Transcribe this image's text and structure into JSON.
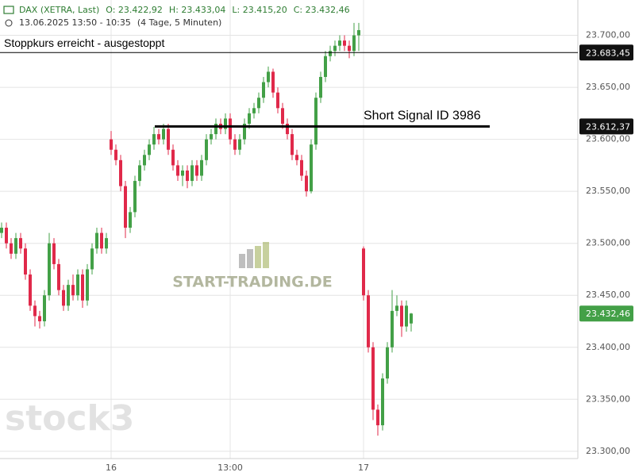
{
  "header": {
    "symbol": "DAX (XETRA, Last)",
    "ohlc": [
      "O: 23.422,92",
      "H: 23.433,04",
      "L: 23.415,20",
      "C: 23.432,46"
    ],
    "period": "13.06.2025 13:50 - 10:35",
    "interval": "(4 Tage, 5 Minuten)"
  },
  "watermarks": {
    "brand": "START-TRADING.DE",
    "logo": "stock3"
  },
  "chart_data": {
    "type": "candlestick",
    "categories": [
      null,
      null,
      null,
      null,
      null,
      null,
      null,
      null,
      null,
      null,
      null,
      null,
      null,
      null,
      null,
      null,
      null,
      null,
      null,
      null,
      null,
      null,
      null,
      "16",
      null,
      null,
      null,
      null,
      null,
      null,
      null,
      null,
      null,
      null,
      null,
      null,
      null,
      null,
      null,
      null,
      null,
      null,
      null,
      null,
      null,
      null,
      null,
      null,
      "13:00",
      null,
      null,
      null,
      null,
      null,
      null,
      null,
      null,
      null,
      null,
      null,
      null,
      null,
      null,
      null,
      null,
      null,
      null,
      null,
      null,
      null,
      null,
      null,
      null,
      null,
      null,
      null,
      "17",
      null,
      null,
      null,
      null,
      null,
      null,
      null,
      null,
      null,
      null
    ],
    "open": [
      23510,
      23515,
      23500,
      23490,
      23505,
      23495,
      23470,
      23440,
      23430,
      23425,
      23450,
      23500,
      23480,
      23455,
      23440,
      23460,
      23450,
      23470,
      23445,
      23475,
      23495,
      23510,
      23495,
      23600,
      23590,
      23580,
      23555,
      23515,
      23530,
      23560,
      23575,
      23585,
      23595,
      23605,
      23600,
      23610,
      23590,
      23575,
      23565,
      23570,
      23560,
      23575,
      23565,
      23580,
      23600,
      23605,
      23615,
      23610,
      23620,
      23600,
      23590,
      23600,
      23615,
      23625,
      23630,
      23640,
      23655,
      23665,
      23645,
      23630,
      23615,
      23605,
      23585,
      23580,
      23565,
      23550,
      23595,
      23640,
      23660,
      23680,
      23685,
      23690,
      23695,
      23690,
      23685,
      23700,
      23495,
      23450,
      23400,
      23340,
      23325,
      23370,
      23400,
      23435,
      23440,
      23420,
      23422.92
    ],
    "high": [
      23520,
      23520,
      23505,
      23510,
      23510,
      23500,
      23475,
      23445,
      23435,
      23455,
      23510,
      23505,
      23485,
      23460,
      23465,
      23470,
      23475,
      23475,
      23480,
      23500,
      23515,
      23515,
      23510,
      23608,
      23595,
      23585,
      23560,
      23535,
      23565,
      23580,
      23590,
      23600,
      23612,
      23610,
      23615,
      23615,
      23595,
      23580,
      23575,
      23575,
      23580,
      23580,
      23585,
      23605,
      23610,
      23620,
      23620,
      23625,
      23625,
      23605,
      23605,
      23620,
      23630,
      23635,
      23645,
      23660,
      23670,
      23668,
      23650,
      23635,
      23620,
      23610,
      23590,
      23585,
      23570,
      23600,
      23645,
      23665,
      23685,
      23690,
      23695,
      23700,
      23700,
      23695,
      23712,
      23712,
      23497,
      23455,
      23405,
      23345,
      23375,
      23405,
      23455,
      23450,
      23445,
      23445,
      23433.04
    ],
    "low": [
      23505,
      23495,
      23485,
      23485,
      23490,
      23465,
      23435,
      23420,
      23418,
      23420,
      23445,
      23475,
      23450,
      23435,
      23435,
      23445,
      23445,
      23438,
      23440,
      23470,
      23490,
      23490,
      23490,
      23585,
      23575,
      23550,
      23505,
      23510,
      23525,
      23555,
      23570,
      23580,
      23590,
      23595,
      23595,
      23585,
      23570,
      23560,
      23555,
      23553,
      23555,
      23560,
      23560,
      23575,
      23595,
      23600,
      23605,
      23605,
      23595,
      23585,
      23585,
      23595,
      23610,
      23620,
      23625,
      23635,
      23650,
      23640,
      23625,
      23610,
      23600,
      23580,
      23575,
      23560,
      23545,
      23548,
      23590,
      23635,
      23655,
      23675,
      23680,
      23685,
      23685,
      23678,
      23680,
      23685,
      23445,
      23395,
      23330,
      23315,
      23320,
      23365,
      23395,
      23430,
      23410,
      23415,
      23415.2
    ],
    "close": [
      23515,
      23500,
      23490,
      23505,
      23495,
      23470,
      23440,
      23430,
      23425,
      23450,
      23500,
      23480,
      23455,
      23440,
      23460,
      23450,
      23470,
      23445,
      23475,
      23495,
      23510,
      23495,
      23505,
      23590,
      23580,
      23555,
      23515,
      23530,
      23560,
      23575,
      23585,
      23595,
      23605,
      23600,
      23610,
      23590,
      23575,
      23565,
      23570,
      23560,
      23575,
      23565,
      23580,
      23600,
      23605,
      23615,
      23610,
      23620,
      23600,
      23590,
      23600,
      23615,
      23625,
      23630,
      23640,
      23655,
      23665,
      23645,
      23630,
      23615,
      23605,
      23585,
      23580,
      23565,
      23550,
      23595,
      23640,
      23660,
      23680,
      23685,
      23690,
      23695,
      23690,
      23685,
      23700,
      23705,
      23450,
      23400,
      23340,
      23325,
      23370,
      23400,
      23435,
      23440,
      23420,
      23440,
      23432.46
    ],
    "up_color": "#43a047",
    "down_color": "#e0294a",
    "ylim": [
      23293,
      23734
    ],
    "yticks": [
      {
        "value": 23300,
        "label": "23.300,00"
      },
      {
        "value": 23350,
        "label": "23.350,00"
      },
      {
        "value": 23400,
        "label": "23.400,00"
      },
      {
        "value": 23450,
        "label": "23.450,00"
      },
      {
        "value": 23500,
        "label": "23.500,00"
      },
      {
        "value": 23550,
        "label": "23.550,00"
      },
      {
        "value": 23600,
        "label": "23.600,00"
      },
      {
        "value": 23650,
        "label": "23.650,00"
      },
      {
        "value": 23700,
        "label": "23.700,00"
      }
    ],
    "grid": true,
    "levels": [
      {
        "text": "Stoppkurs erreicht - ausgestoppt",
        "value": 23683.45,
        "label": "23.683,45"
      },
      {
        "text": "Short Signal  ID 3986",
        "value": 23612.37,
        "label": "23.612,37"
      }
    ],
    "last_price": {
      "value": 23432.46,
      "label": "23.432,46",
      "color": "#43a047"
    }
  }
}
